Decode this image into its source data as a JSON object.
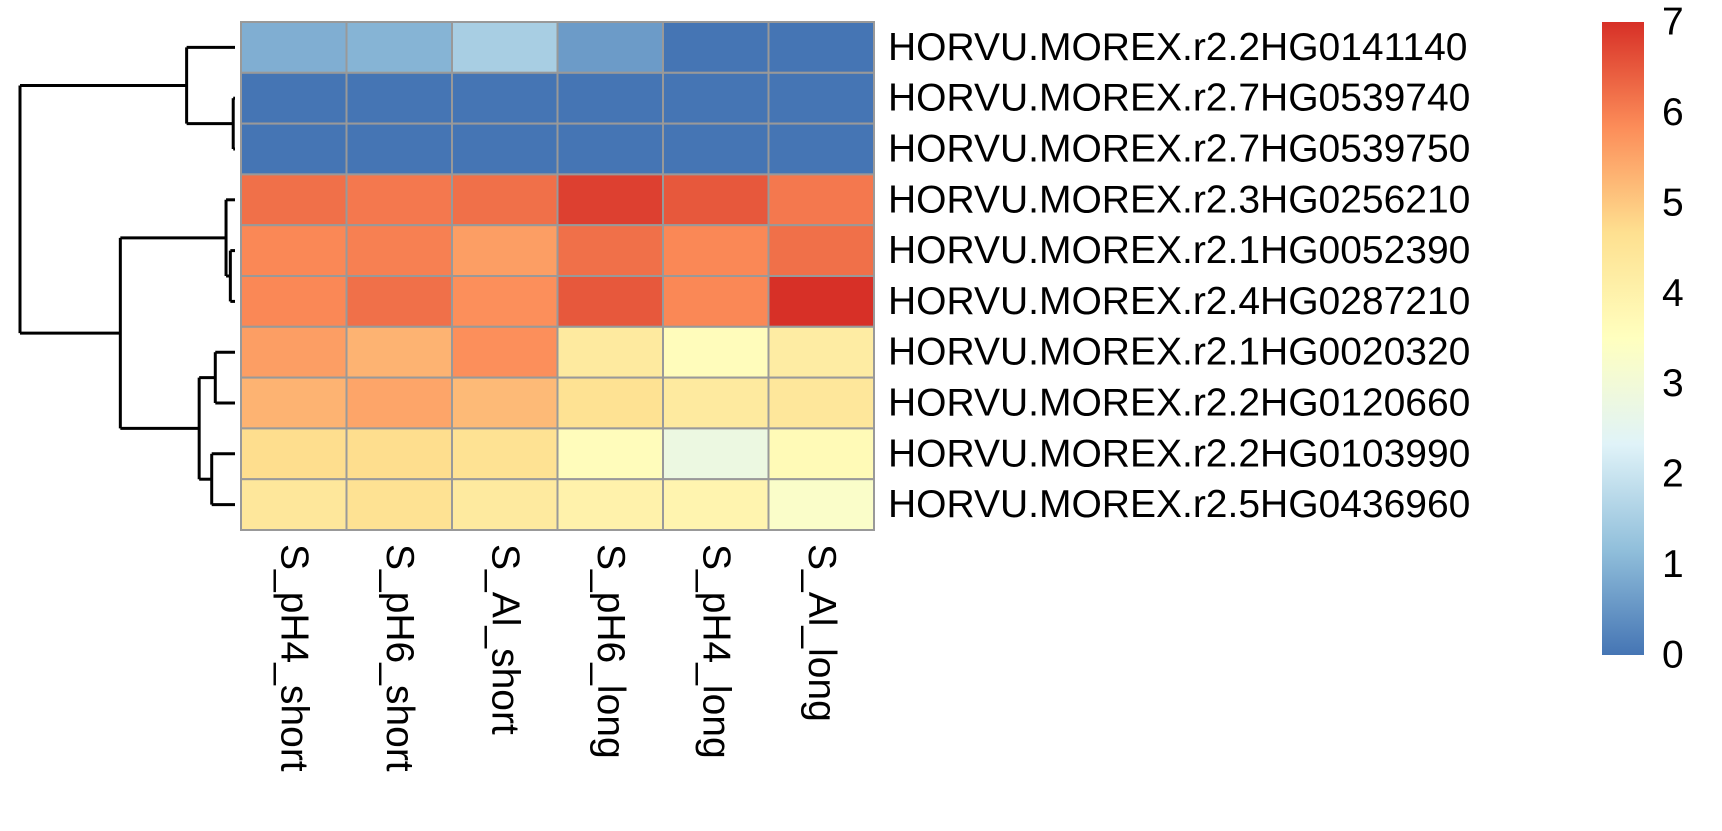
{
  "chart_data": {
    "type": "heatmap",
    "columns": [
      "S_pH4_short",
      "S_pH6_short",
      "S_Al_short",
      "S_pH6_long",
      "S_pH4_long",
      "S_Al_long"
    ],
    "rows": [
      "HORVU.MOREX.r2.2HG0141140",
      "HORVU.MOREX.r2.7HG0539740",
      "HORVU.MOREX.r2.7HG0539750",
      "HORVU.MOREX.r2.3HG0256210",
      "HORVU.MOREX.r2.1HG0052390",
      "HORVU.MOREX.r2.4HG0287210",
      "HORVU.MOREX.r2.1HG0020320",
      "HORVU.MOREX.r2.2HG0120660",
      "HORVU.MOREX.r2.2HG0103990",
      "HORVU.MOREX.r2.5HG0436960"
    ],
    "values": [
      [
        0.9,
        1.0,
        1.5,
        0.6,
        0.0,
        0.0
      ],
      [
        0.0,
        0.0,
        0.0,
        0.0,
        0.0,
        0.0
      ],
      [
        0.0,
        0.0,
        0.0,
        0.0,
        0.0,
        0.0
      ],
      [
        6.2,
        6.1,
        6.2,
        6.8,
        6.5,
        6.1
      ],
      [
        5.9,
        6.0,
        5.6,
        6.2,
        5.9,
        6.2
      ],
      [
        5.9,
        6.2,
        5.8,
        6.5,
        5.9,
        7.0
      ],
      [
        5.6,
        5.3,
        5.8,
        4.3,
        3.6,
        4.2
      ],
      [
        5.3,
        5.5,
        5.2,
        4.6,
        4.3,
        4.4
      ],
      [
        4.7,
        4.7,
        4.6,
        3.6,
        2.8,
        3.7
      ],
      [
        4.4,
        4.6,
        4.3,
        4.0,
        3.9,
        3.3
      ]
    ],
    "color_scale": {
      "min": 0,
      "max": 7,
      "ticks": [
        0,
        1,
        2,
        3,
        4,
        5,
        6,
        7
      ],
      "stops": [
        "#4575B4",
        "#91BFDB",
        "#E0F3F8",
        "#FFFFBF",
        "#FEE090",
        "#FC8D59",
        "#D73027"
      ]
    },
    "row_dendrogram": {
      "leaf_order": [
        0,
        1,
        2,
        3,
        4,
        5,
        6,
        7,
        8,
        9
      ],
      "merges": [
        {
          "id": "m1",
          "a": 1,
          "b": 2,
          "height": 0.05
        },
        {
          "id": "m2",
          "a": 4,
          "b": 5,
          "height": 0.13
        },
        {
          "id": "m3",
          "a": 3,
          "b": "m2",
          "height": 0.25
        },
        {
          "id": "m4",
          "a": 0,
          "b": "m1",
          "height": 1.35
        },
        {
          "id": "m5",
          "a": 6,
          "b": 7,
          "height": 0.55
        },
        {
          "id": "m6",
          "a": 8,
          "b": 9,
          "height": 0.65
        },
        {
          "id": "m7",
          "a": "m5",
          "b": "m6",
          "height": 1.0
        },
        {
          "id": "m8",
          "a": "m3",
          "b": "m7",
          "height": 3.2
        },
        {
          "id": "m9",
          "a": "m4",
          "b": "m8",
          "height": 6.0
        }
      ]
    },
    "cell_border_color": "#999999",
    "legend_position": "right"
  }
}
